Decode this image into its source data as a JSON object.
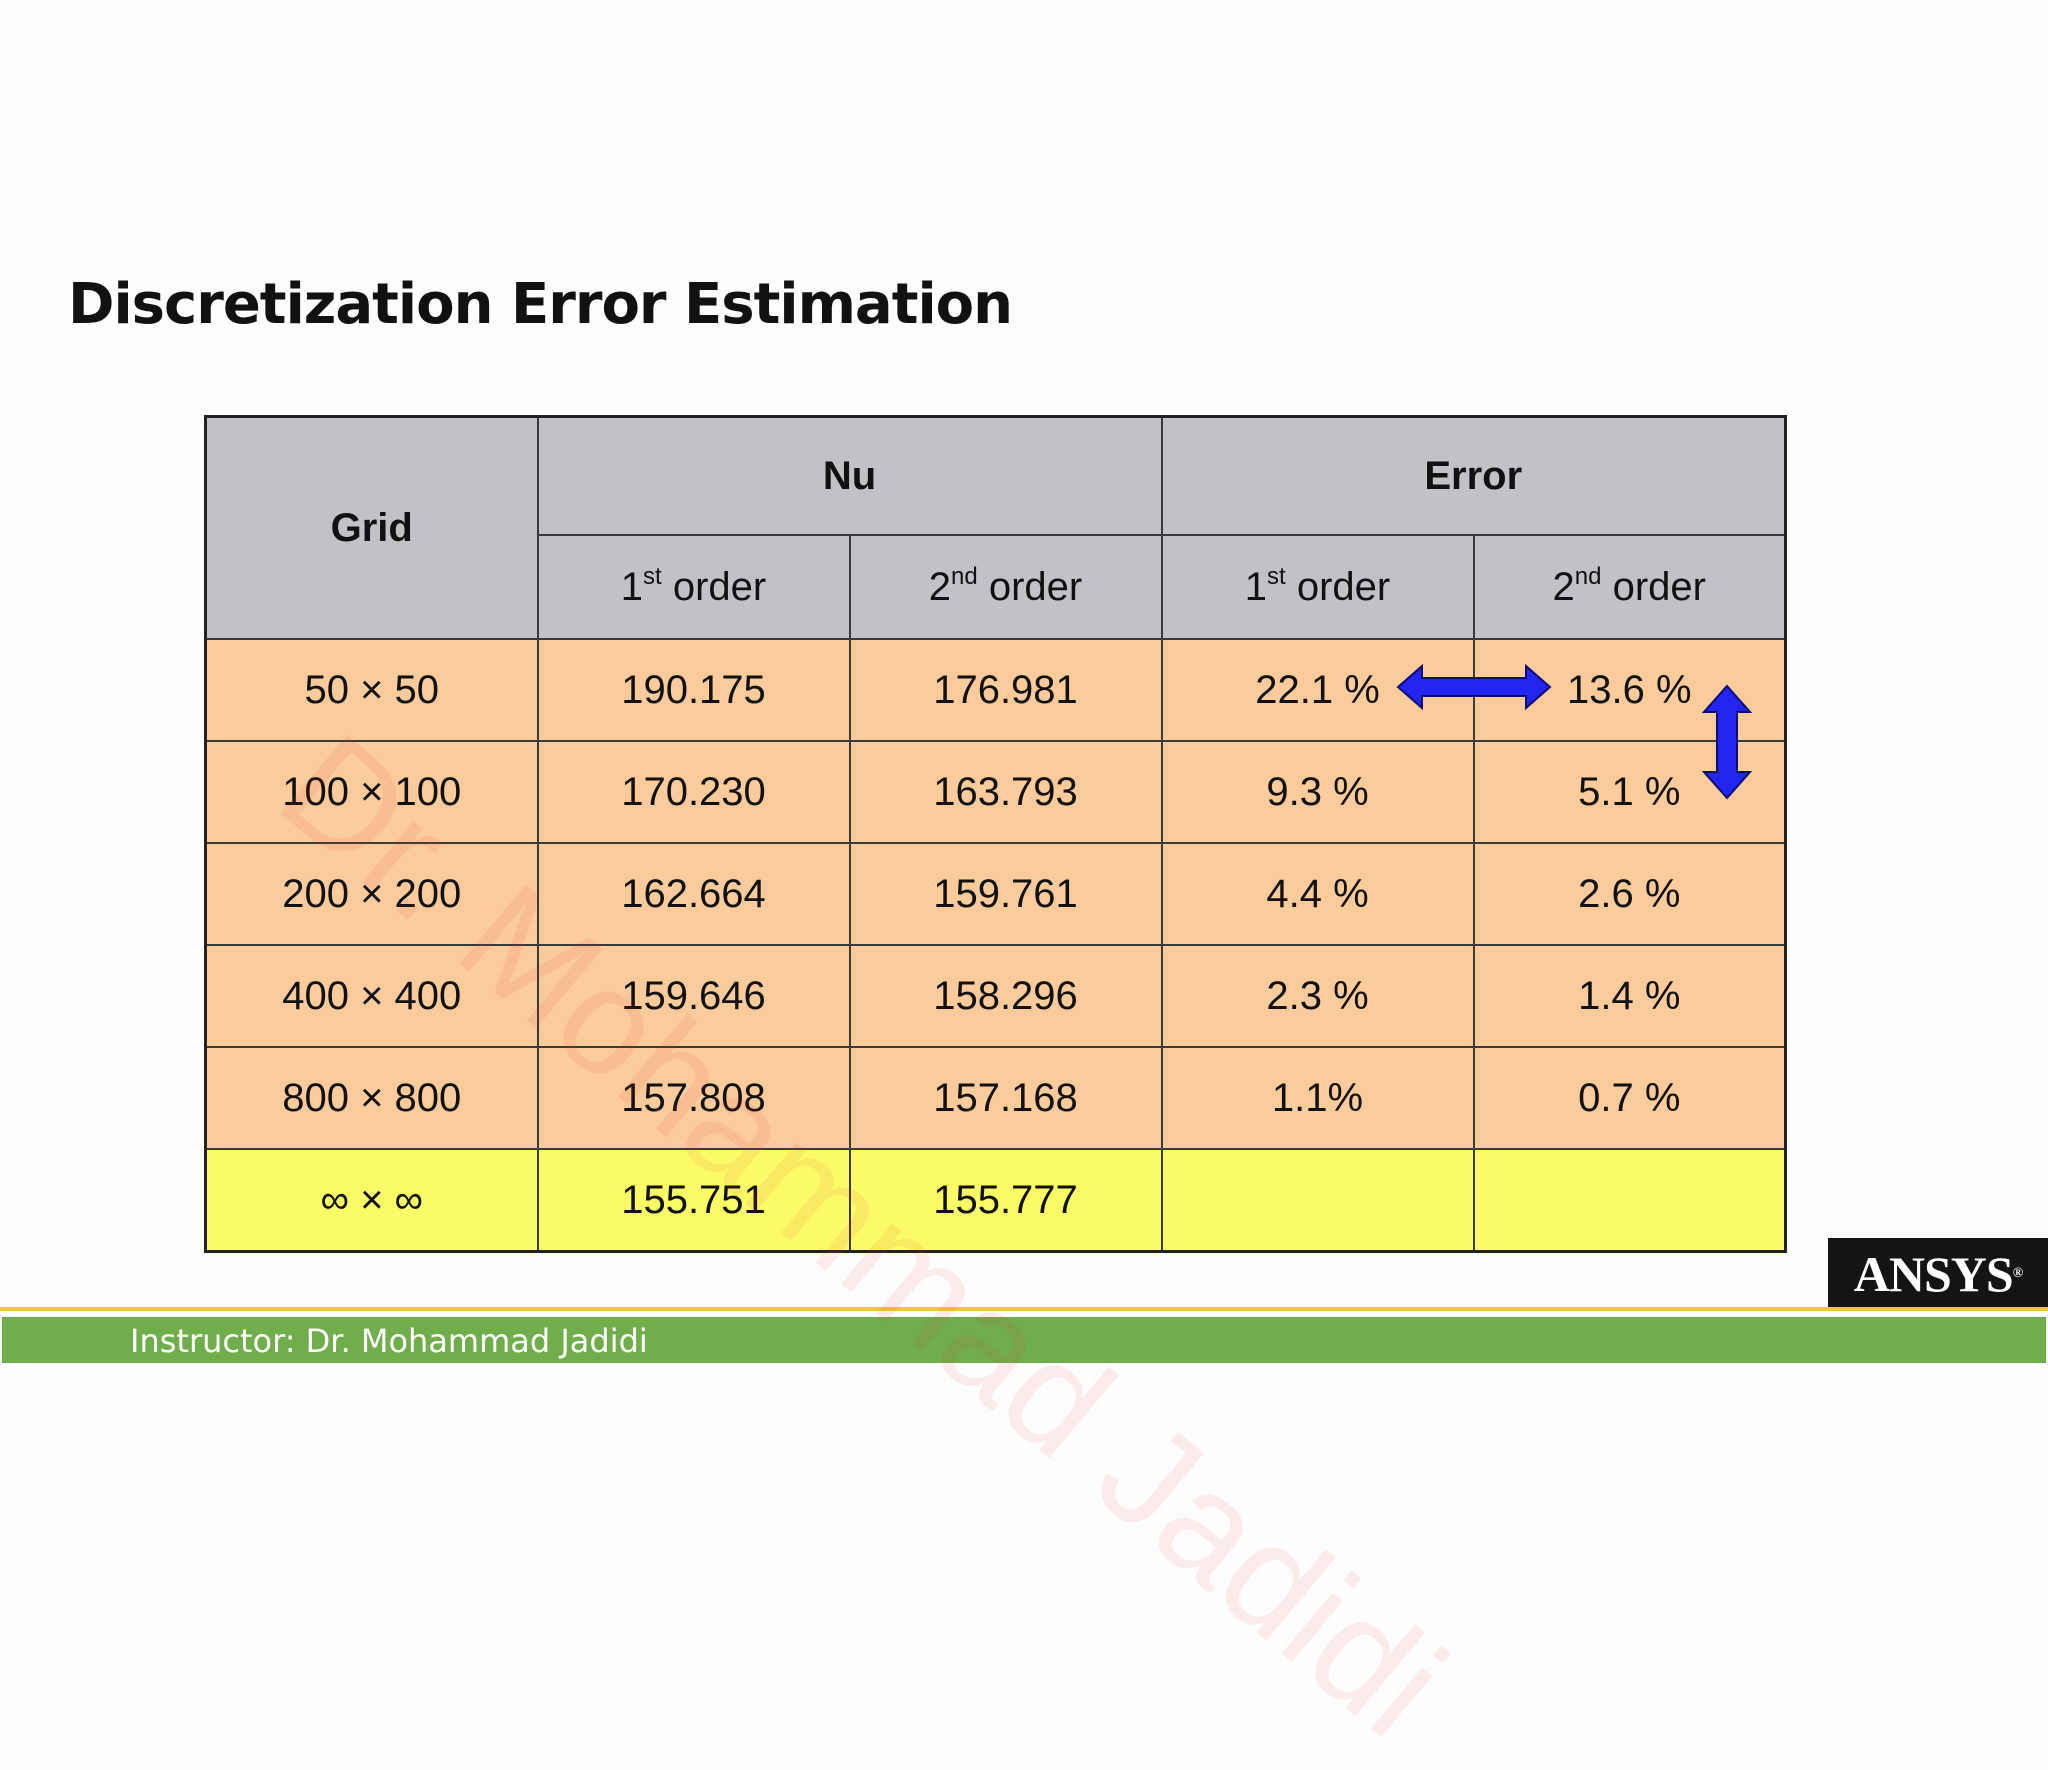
{
  "slide": {
    "title": "Discretization Error Estimation",
    "watermark": "Dr. Mohammad Jadidi",
    "footer": "Instructor: Dr. Mohammad Jadidi",
    "logo": "ANSYS",
    "logo_mark": "®"
  },
  "table": {
    "header": {
      "grid": "Grid",
      "nu": "Nu",
      "error": "Error",
      "order_1_num": "1",
      "order_1_sup": "st",
      "order_2_num": "2",
      "order_2_sup": "nd",
      "order_suffix": " order"
    },
    "rows": [
      {
        "grid": "50 × 50",
        "nu_1": "190.175",
        "nu_2": "176.981",
        "err_1": "22.1 %",
        "err_2": "13.6 %"
      },
      {
        "grid": "100 × 100",
        "nu_1": "170.230",
        "nu_2": "163.793",
        "err_1": "9.3 %",
        "err_2": "5.1 %"
      },
      {
        "grid": "200 × 200",
        "nu_1": "162.664",
        "nu_2": "159.761",
        "err_1": "4.4 %",
        "err_2": "2.6 %"
      },
      {
        "grid": "400 × 400",
        "nu_1": "159.646",
        "nu_2": "158.296",
        "err_1": "2.3 %",
        "err_2": "1.4 %"
      },
      {
        "grid": "800 × 800",
        "nu_1": "157.808",
        "nu_2": "157.168",
        "err_1": "1.1%",
        "err_2": "0.7 %"
      },
      {
        "grid": "∞ × ∞",
        "nu_1": "155.751",
        "nu_2": "155.777",
        "err_1": "",
        "err_2": ""
      }
    ]
  },
  "colors": {
    "header_bg": "#c2c1c6",
    "data_bg": "#fbcb9b",
    "limit_bg": "#fbfb68",
    "arrow": "#2424f0",
    "footer_green": "#6fae4a"
  }
}
